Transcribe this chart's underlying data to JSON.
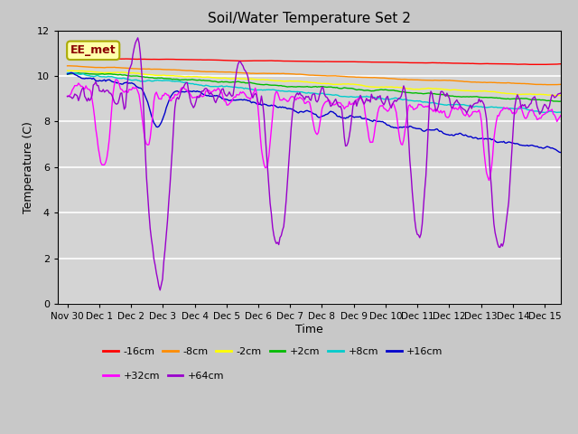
{
  "title": "Soil/Water Temperature Set 2",
  "xlabel": "Time",
  "ylabel": "Temperature (C)",
  "annotation": "EE_met",
  "xlim": [
    -0.3,
    15.5
  ],
  "ylim": [
    0,
    12
  ],
  "yticks": [
    0,
    2,
    4,
    6,
    8,
    10,
    12
  ],
  "xtick_labels": [
    "Nov 30",
    "Dec 1",
    "Dec 2",
    "Dec 3",
    "Dec 4",
    "Dec 5",
    "Dec 6",
    "Dec 7",
    "Dec 8",
    "Dec 9",
    "Dec 10",
    "Dec 11",
    "Dec 12",
    "Dec 13",
    "Dec 14",
    "Dec 15"
  ],
  "xtick_positions": [
    0,
    1,
    2,
    3,
    4,
    5,
    6,
    7,
    8,
    9,
    10,
    11,
    12,
    13,
    14,
    15
  ],
  "fig_bg_color": "#c8c8c8",
  "plot_bg_color": "#d4d4d4",
  "lines": [
    {
      "label": "-16cm",
      "color": "#ff0000"
    },
    {
      "label": "-8cm",
      "color": "#ff8c00"
    },
    {
      "label": "-2cm",
      "color": "#ffff00"
    },
    {
      "label": "+2cm",
      "color": "#00bb00"
    },
    {
      "label": "+8cm",
      "color": "#00cccc"
    },
    {
      "label": "+16cm",
      "color": "#0000cc"
    },
    {
      "label": "+32cm",
      "color": "#ff00ff"
    },
    {
      "label": "+64cm",
      "color": "#9900cc"
    }
  ],
  "n_points": 400
}
